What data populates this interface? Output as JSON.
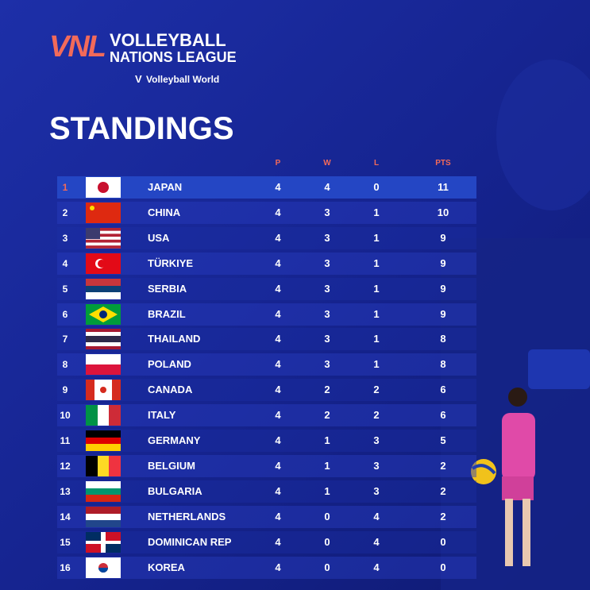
{
  "header": {
    "logo": "VNL",
    "league_line1": "VOLLEYBALL",
    "league_line2": "NATIONS LEAGUE",
    "org": "Volleyball World"
  },
  "title": "STANDINGS",
  "table": {
    "columns": [
      "P",
      "W",
      "L",
      "PTS"
    ],
    "rows": [
      [
        1,
        "JAPAN",
        4,
        4,
        0,
        11
      ],
      [
        2,
        "CHINA",
        4,
        3,
        1,
        10
      ],
      [
        3,
        "USA",
        4,
        3,
        1,
        9
      ],
      [
        4,
        "TÜRKIYE",
        4,
        3,
        1,
        9
      ],
      [
        5,
        "SERBIA",
        4,
        3,
        1,
        9
      ],
      [
        6,
        "BRAZIL",
        4,
        3,
        1,
        9
      ],
      [
        7,
        "THAILAND",
        4,
        3,
        1,
        8
      ],
      [
        8,
        "POLAND",
        4,
        3,
        1,
        8
      ],
      [
        9,
        "CANADA",
        4,
        2,
        2,
        6
      ],
      [
        10,
        "ITALY",
        4,
        2,
        2,
        6
      ],
      [
        11,
        "GERMANY",
        4,
        1,
        3,
        5
      ],
      [
        12,
        "BELGIUM",
        4,
        1,
        3,
        2
      ],
      [
        13,
        "BULGARIA",
        4,
        1,
        3,
        2
      ],
      [
        14,
        "NETHERLANDS",
        4,
        0,
        4,
        2
      ],
      [
        15,
        "DOMINICAN REP",
        4,
        0,
        4,
        0
      ],
      [
        16,
        "KOREA",
        4,
        0,
        4,
        0
      ]
    ]
  }
}
